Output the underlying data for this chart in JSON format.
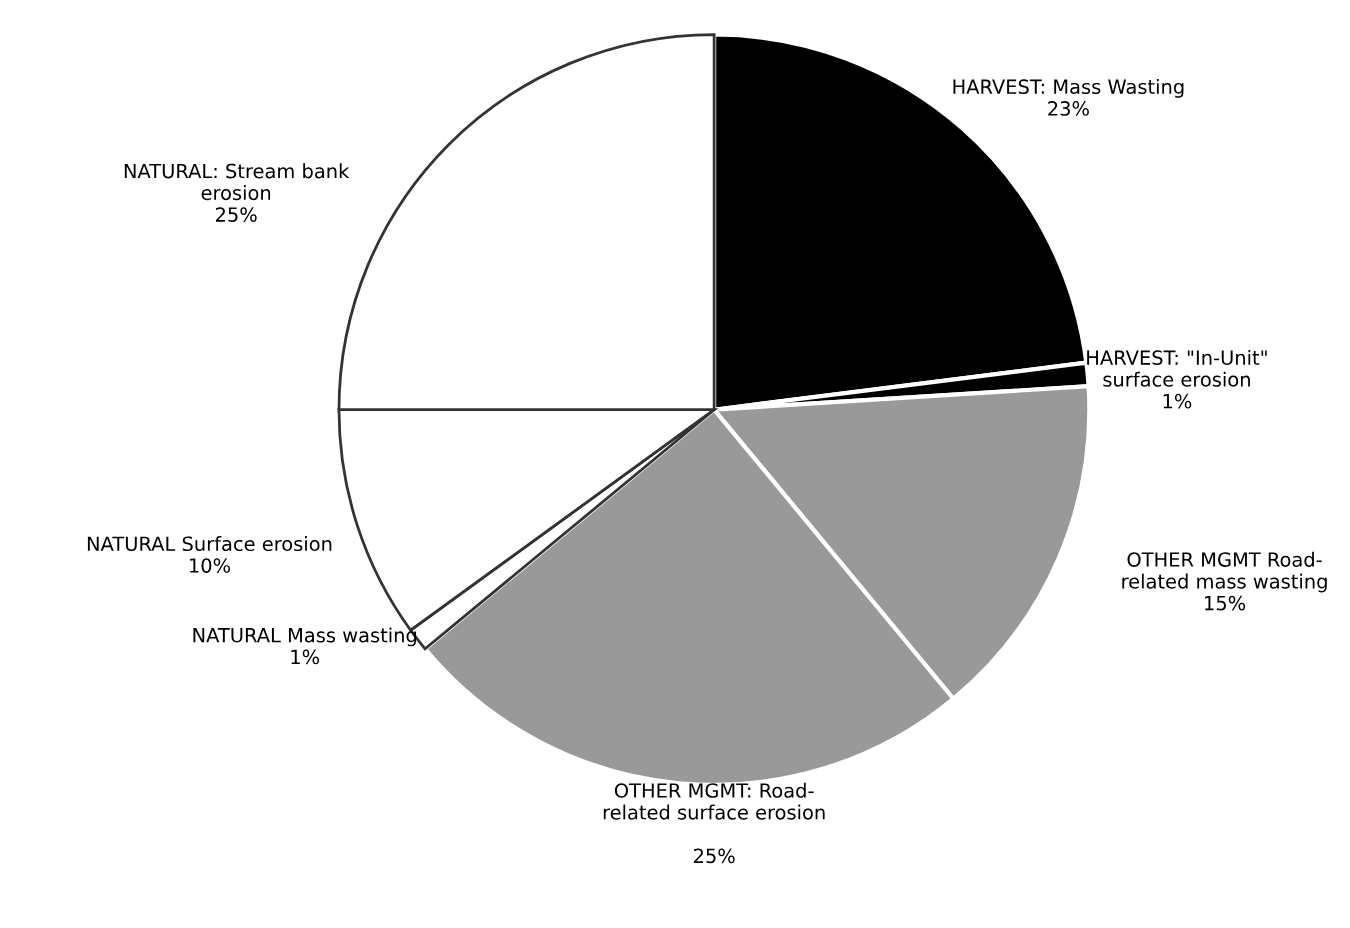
{
  "chart_data": {
    "type": "pie",
    "categories": [
      "HARVEST: Mass Wasting",
      "HARVEST: \"In-Unit\"\nsurface erosion",
      "OTHER MGMT Road-\nrelated mass wasting",
      "OTHER MGMT: Road-\nrelated surface erosion",
      "NATURAL Mass wasting",
      "NATURAL Surface erosion",
      "NATURAL: Stream bank\nerosion"
    ],
    "values": [
      23,
      1,
      15,
      25,
      1,
      10,
      25
    ],
    "colors": [
      "#000000",
      "#000000",
      "#999999",
      "#999999",
      "#ffffff",
      "#ffffff",
      "#ffffff"
    ],
    "value_labels": [
      "23%",
      "1%",
      "15%",
      "25%",
      "1%",
      "10%",
      "25%"
    ]
  }
}
